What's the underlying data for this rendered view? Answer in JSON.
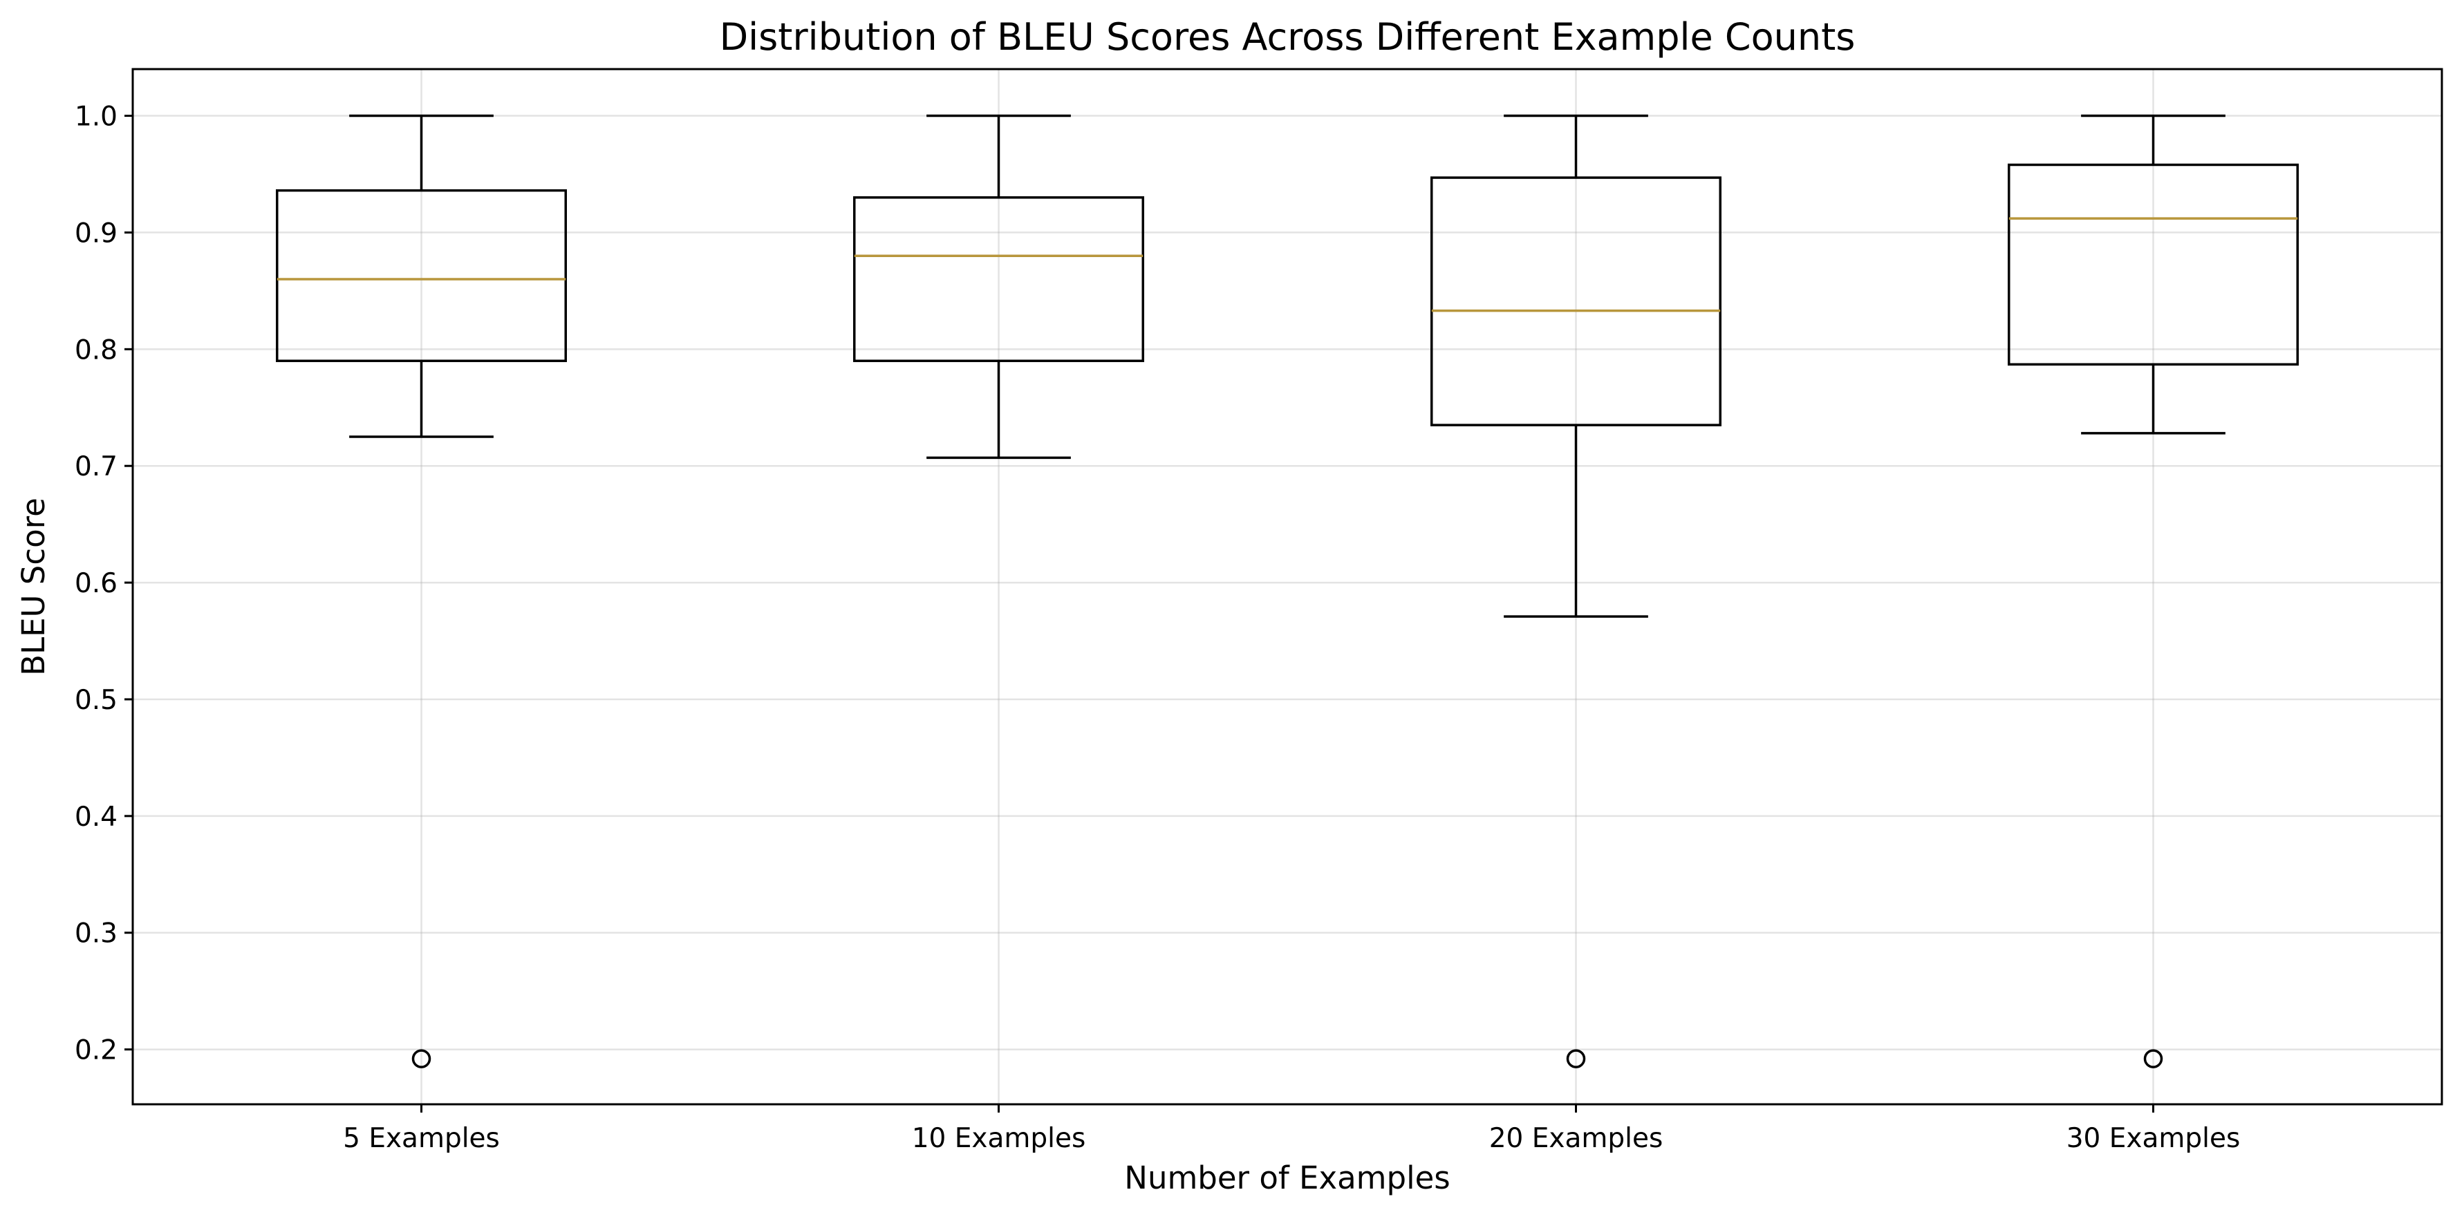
{
  "chart_data": {
    "type": "box",
    "title": "Distribution of BLEU Scores Across Different Example Counts",
    "xlabel": "Number of Examples",
    "ylabel": "BLEU Score",
    "ylim": [
      0.153,
      1.04
    ],
    "yticks": [
      0.2,
      0.3,
      0.4,
      0.5,
      0.6,
      0.7,
      0.8,
      0.9,
      1.0
    ],
    "ytick_labels": [
      "0.2",
      "0.3",
      "0.4",
      "0.5",
      "0.6",
      "0.7",
      "0.8",
      "0.9",
      "1.0"
    ],
    "grid": true,
    "categories": [
      "5 Examples",
      "10 Examples",
      "20 Examples",
      "30 Examples"
    ],
    "boxes": [
      {
        "whisker_low": 0.725,
        "q1": 0.79,
        "median": 0.86,
        "q3": 0.936,
        "whisker_high": 1.0,
        "fliers": [
          0.192
        ]
      },
      {
        "whisker_low": 0.707,
        "q1": 0.79,
        "median": 0.88,
        "q3": 0.93,
        "whisker_high": 1.0,
        "fliers": []
      },
      {
        "whisker_low": 0.571,
        "q1": 0.735,
        "median": 0.833,
        "q3": 0.947,
        "whisker_high": 1.0,
        "fliers": [
          0.192
        ]
      },
      {
        "whisker_low": 0.728,
        "q1": 0.787,
        "median": 0.912,
        "q3": 0.958,
        "whisker_high": 1.0,
        "fliers": [
          0.192
        ]
      }
    ],
    "colors": {
      "box": "#000000",
      "median": "#b8963c",
      "grid": "#b0b0b0"
    }
  }
}
